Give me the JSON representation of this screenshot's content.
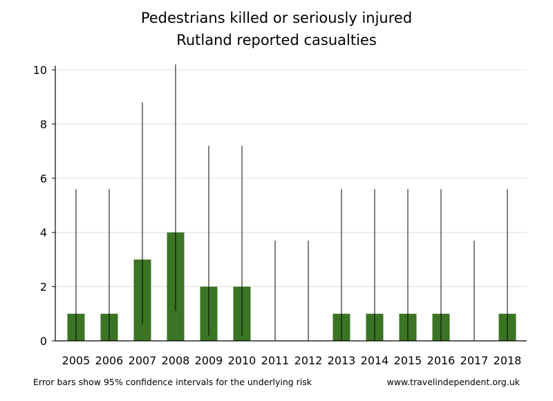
{
  "chart_data": {
    "type": "bar",
    "title": "Pedestrians killed or seriously injured",
    "subtitle": "Rutland reported casualties",
    "categories": [
      "2005",
      "2006",
      "2007",
      "2008",
      "2009",
      "2010",
      "2011",
      "2012",
      "2013",
      "2014",
      "2015",
      "2016",
      "2017",
      "2018"
    ],
    "values": [
      1,
      1,
      3,
      4,
      2,
      2,
      0,
      0,
      1,
      1,
      1,
      1,
      0,
      1
    ],
    "error_bars": {
      "lower": [
        0,
        0,
        0.6,
        1.1,
        0.2,
        0.2,
        0,
        0,
        0,
        0,
        0,
        0,
        0,
        0
      ],
      "upper": [
        5.6,
        5.6,
        8.8,
        10.2,
        7.2,
        7.2,
        3.7,
        3.7,
        5.6,
        5.6,
        5.6,
        5.6,
        3.7,
        5.6
      ]
    },
    "ylim": [
      0,
      10
    ],
    "yticks": [
      0,
      2,
      4,
      6,
      8,
      10
    ],
    "grid": true,
    "bar_color": "#3a7424",
    "xlabel": "",
    "ylabel": ""
  },
  "footer": {
    "note": "Error bars show 95% confidence intervals for the underlying risk",
    "source": "www.travelindependent.org.uk"
  }
}
